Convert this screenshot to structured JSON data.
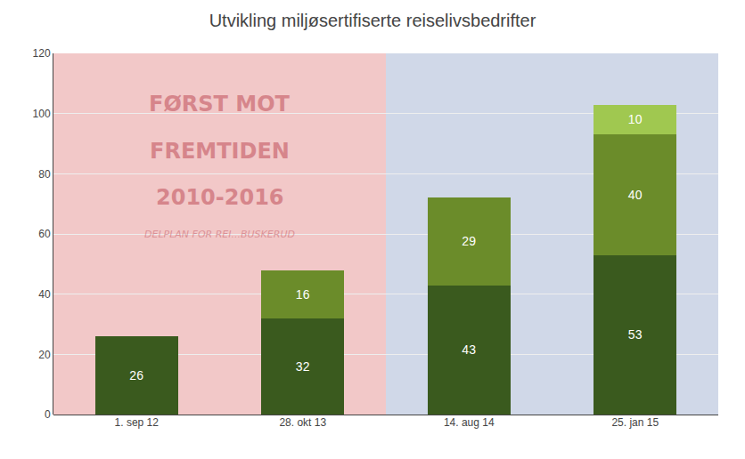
{
  "chart_data": {
    "type": "bar",
    "stacked": true,
    "title": "Utvikling miljøsertifiserte reiselivsbedrifter",
    "categories": [
      "1. sep 12",
      "28. okt 13",
      "14. aug 14",
      "25. jan 15"
    ],
    "series": [
      {
        "color": "#3a5a1e",
        "values": [
          26,
          32,
          43,
          53
        ]
      },
      {
        "color": "#6b8c2a",
        "values": [
          0,
          16,
          29,
          40
        ]
      },
      {
        "color": "#a0c850",
        "values": [
          0,
          0,
          0,
          10
        ]
      }
    ],
    "ylim": [
      0,
      120
    ],
    "yticks": [
      0,
      20,
      40,
      60,
      80,
      100,
      120
    ],
    "grid": true,
    "data_labels": true,
    "annotations": [
      "FØRST MOT",
      "FREMTIDEN",
      "2010-2016",
      "DELPLAN FOR REI...BUSKERUD"
    ]
  }
}
